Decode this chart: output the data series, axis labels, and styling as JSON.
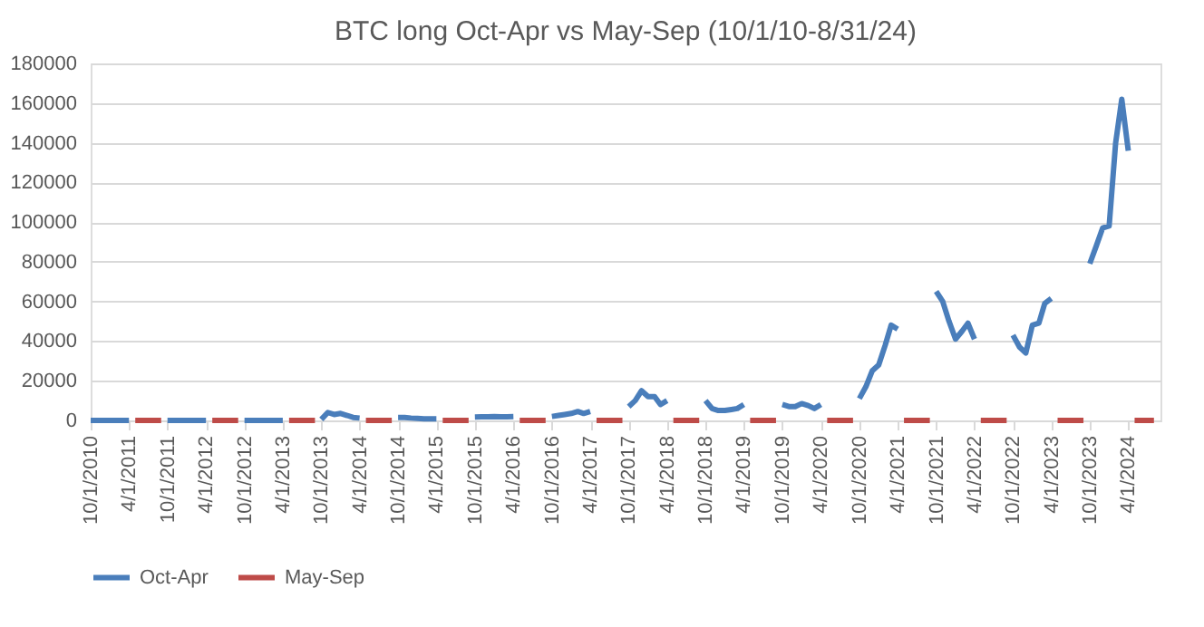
{
  "chart_data": {
    "type": "line",
    "title": "BTC long Oct-Apr vs May-Sep (10/1/10-8/31/24)",
    "x": [
      "2010-10",
      "2010-11",
      "2010-12",
      "2011-01",
      "2011-02",
      "2011-03",
      "2011-04",
      "2011-05",
      "2011-06",
      "2011-07",
      "2011-08",
      "2011-09",
      "2011-10",
      "2011-11",
      "2011-12",
      "2012-01",
      "2012-02",
      "2012-03",
      "2012-04",
      "2012-05",
      "2012-06",
      "2012-07",
      "2012-08",
      "2012-09",
      "2012-10",
      "2012-11",
      "2012-12",
      "2013-01",
      "2013-02",
      "2013-03",
      "2013-04",
      "2013-05",
      "2013-06",
      "2013-07",
      "2013-08",
      "2013-09",
      "2013-10",
      "2013-11",
      "2013-12",
      "2014-01",
      "2014-02",
      "2014-03",
      "2014-04",
      "2014-05",
      "2014-06",
      "2014-07",
      "2014-08",
      "2014-09",
      "2014-10",
      "2014-11",
      "2014-12",
      "2015-01",
      "2015-02",
      "2015-03",
      "2015-04",
      "2015-05",
      "2015-06",
      "2015-07",
      "2015-08",
      "2015-09",
      "2015-10",
      "2015-11",
      "2015-12",
      "2016-01",
      "2016-02",
      "2016-03",
      "2016-04",
      "2016-05",
      "2016-06",
      "2016-07",
      "2016-08",
      "2016-09",
      "2016-10",
      "2016-11",
      "2016-12",
      "2017-01",
      "2017-02",
      "2017-03",
      "2017-04",
      "2017-05",
      "2017-06",
      "2017-07",
      "2017-08",
      "2017-09",
      "2017-10",
      "2017-11",
      "2017-12",
      "2018-01",
      "2018-02",
      "2018-03",
      "2018-04",
      "2018-05",
      "2018-06",
      "2018-07",
      "2018-08",
      "2018-09",
      "2018-10",
      "2018-11",
      "2018-12",
      "2019-01",
      "2019-02",
      "2019-03",
      "2019-04",
      "2019-05",
      "2019-06",
      "2019-07",
      "2019-08",
      "2019-09",
      "2019-10",
      "2019-11",
      "2019-12",
      "2020-01",
      "2020-02",
      "2020-03",
      "2020-04",
      "2020-05",
      "2020-06",
      "2020-07",
      "2020-08",
      "2020-09",
      "2020-10",
      "2020-11",
      "2020-12",
      "2021-01",
      "2021-02",
      "2021-03",
      "2021-04",
      "2021-05",
      "2021-06",
      "2021-07",
      "2021-08",
      "2021-09",
      "2021-10",
      "2021-11",
      "2021-12",
      "2022-01",
      "2022-02",
      "2022-03",
      "2022-04",
      "2022-05",
      "2022-06",
      "2022-07",
      "2022-08",
      "2022-09",
      "2022-10",
      "2022-11",
      "2022-12",
      "2023-01",
      "2023-02",
      "2023-03",
      "2023-04",
      "2023-05",
      "2023-06",
      "2023-07",
      "2023-08",
      "2023-09",
      "2023-10",
      "2023-11",
      "2023-12",
      "2024-01",
      "2024-02",
      "2024-03",
      "2024-04",
      "2024-05",
      "2024-06",
      "2024-07",
      "2024-08"
    ],
    "series": [
      {
        "name": "Oct-Apr",
        "color": "#4a7ebb",
        "values": [
          0,
          0,
          0,
          0,
          0,
          0,
          0,
          null,
          null,
          null,
          null,
          null,
          0,
          0,
          0,
          0,
          0,
          0,
          0,
          null,
          null,
          null,
          null,
          null,
          0,
          0,
          0,
          0,
          0,
          0,
          0,
          null,
          null,
          null,
          null,
          null,
          500,
          4000,
          3000,
          3500,
          2500,
          1500,
          1200,
          null,
          null,
          null,
          null,
          null,
          1500,
          1500,
          1200,
          1000,
          800,
          800,
          800,
          null,
          null,
          null,
          null,
          null,
          1700,
          1800,
          1800,
          1900,
          1800,
          1800,
          1900,
          null,
          null,
          null,
          null,
          null,
          2000,
          2500,
          3000,
          3500,
          4500,
          3500,
          4500,
          null,
          null,
          null,
          null,
          null,
          7000,
          10000,
          15000,
          12000,
          12000,
          8000,
          10000,
          null,
          null,
          null,
          null,
          null,
          10000,
          6000,
          5000,
          5000,
          5500,
          6000,
          8000,
          null,
          null,
          null,
          null,
          null,
          8000,
          7000,
          7000,
          8500,
          7500,
          6000,
          8000,
          null,
          null,
          null,
          null,
          null,
          11000,
          17000,
          25000,
          28000,
          38000,
          48000,
          46000,
          null,
          null,
          null,
          null,
          null,
          65000,
          60000,
          50000,
          41000,
          45000,
          49000,
          41000,
          null,
          null,
          null,
          null,
          null,
          43000,
          37000,
          34000,
          48000,
          49000,
          59000,
          61500,
          null,
          null,
          null,
          null,
          null,
          79000,
          88000,
          97000,
          98000,
          140000,
          162000,
          136000,
          null,
          null,
          null,
          null
        ]
      },
      {
        "name": "May-Sep",
        "color": "#be4b48",
        "values": [
          null,
          null,
          null,
          null,
          null,
          null,
          null,
          0,
          0,
          0,
          0,
          0,
          null,
          null,
          null,
          null,
          null,
          null,
          null,
          0,
          0,
          0,
          0,
          0,
          null,
          null,
          null,
          null,
          null,
          null,
          null,
          0,
          0,
          0,
          0,
          0,
          null,
          null,
          null,
          null,
          null,
          null,
          null,
          0,
          0,
          0,
          0,
          0,
          null,
          null,
          null,
          null,
          null,
          null,
          null,
          0,
          0,
          0,
          0,
          0,
          null,
          null,
          null,
          null,
          null,
          null,
          null,
          0,
          0,
          0,
          0,
          0,
          null,
          null,
          null,
          null,
          null,
          null,
          null,
          0,
          0,
          0,
          0,
          0,
          null,
          null,
          null,
          null,
          null,
          null,
          null,
          0,
          0,
          0,
          0,
          0,
          null,
          null,
          null,
          null,
          null,
          null,
          null,
          0,
          0,
          0,
          0,
          0,
          null,
          null,
          null,
          null,
          null,
          null,
          null,
          0,
          0,
          0,
          0,
          0,
          null,
          null,
          null,
          null,
          null,
          null,
          null,
          0,
          0,
          0,
          0,
          0,
          null,
          null,
          null,
          null,
          null,
          null,
          null,
          0,
          0,
          0,
          0,
          0,
          null,
          null,
          null,
          null,
          null,
          null,
          null,
          0,
          0,
          0,
          0,
          0,
          null,
          null,
          null,
          null,
          null,
          null,
          null,
          0,
          0,
          0,
          0
        ]
      }
    ],
    "xlim": [
      "2010-10",
      "2024-09"
    ],
    "xticks": [
      {
        "value": "2010-10",
        "label": "10/1/2010"
      },
      {
        "value": "2011-04",
        "label": "4/1/2011"
      },
      {
        "value": "2011-10",
        "label": "10/1/2011"
      },
      {
        "value": "2012-04",
        "label": "4/1/2012"
      },
      {
        "value": "2012-10",
        "label": "10/1/2012"
      },
      {
        "value": "2013-04",
        "label": "4/1/2013"
      },
      {
        "value": "2013-10",
        "label": "10/1/2013"
      },
      {
        "value": "2014-04",
        "label": "4/1/2014"
      },
      {
        "value": "2014-10",
        "label": "10/1/2014"
      },
      {
        "value": "2015-04",
        "label": "4/1/2015"
      },
      {
        "value": "2015-10",
        "label": "10/1/2015"
      },
      {
        "value": "2016-04",
        "label": "4/1/2016"
      },
      {
        "value": "2016-10",
        "label": "10/1/2016"
      },
      {
        "value": "2017-04",
        "label": "4/1/2017"
      },
      {
        "value": "2017-10",
        "label": "10/1/2017"
      },
      {
        "value": "2018-04",
        "label": "4/1/2018"
      },
      {
        "value": "2018-10",
        "label": "10/1/2018"
      },
      {
        "value": "2019-04",
        "label": "4/1/2019"
      },
      {
        "value": "2019-10",
        "label": "10/1/2019"
      },
      {
        "value": "2020-04",
        "label": "4/1/2020"
      },
      {
        "value": "2020-10",
        "label": "10/1/2020"
      },
      {
        "value": "2021-04",
        "label": "4/1/2021"
      },
      {
        "value": "2021-10",
        "label": "10/1/2021"
      },
      {
        "value": "2022-04",
        "label": "4/1/2022"
      },
      {
        "value": "2022-10",
        "label": "10/1/2022"
      },
      {
        "value": "2023-04",
        "label": "4/1/2023"
      },
      {
        "value": "2023-10",
        "label": "10/1/2023"
      },
      {
        "value": "2024-04",
        "label": "4/1/2024"
      }
    ],
    "ylim": [
      0,
      180000
    ],
    "yticks": [
      0,
      20000,
      40000,
      60000,
      80000,
      100000,
      120000,
      140000,
      160000,
      180000
    ],
    "grid": "y",
    "legend": "bottom",
    "marker": "none"
  }
}
